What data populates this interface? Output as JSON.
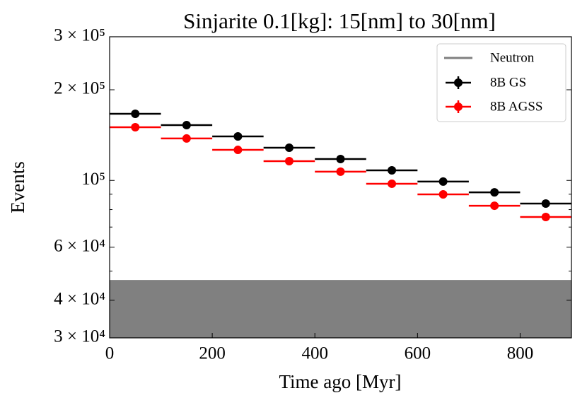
{
  "chart_data": {
    "type": "errorbar",
    "log_y": true,
    "title": "Sinjarite 0.1[kg]: 15[nm] to 30[nm]",
    "xlabel": "Time ago [Myr]",
    "ylabel": "Events",
    "x": [
      50,
      150,
      250,
      350,
      450,
      550,
      650,
      750,
      850
    ],
    "xerr": 50,
    "series": [
      {
        "name": "8B GS",
        "color": "#000000",
        "values": [
          166400,
          152600,
          140000,
          128400,
          117800,
          108000,
          99100,
          91300,
          83800
        ]
      },
      {
        "name": "8B AGSS",
        "color": "#ff0000",
        "values": [
          150200,
          137800,
          126300,
          115900,
          106900,
          97500,
          89900,
          82400,
          75600
        ]
      }
    ],
    "neutron": {
      "name": "Neutron",
      "color": "#808080",
      "value": 46700
    },
    "xlim": [
      0,
      900
    ],
    "xticks": [
      0,
      200,
      400,
      600,
      800
    ],
    "ylim": [
      30000,
      300000
    ],
    "yticks": [
      {
        "value": 300000,
        "label": "3 × 10⁵"
      },
      {
        "value": 200000,
        "label": "2 × 10⁵"
      },
      {
        "value": 100000,
        "label": "10⁵"
      },
      {
        "value": 60000,
        "label": "6 × 10⁴"
      },
      {
        "value": 40000,
        "label": "4 × 10⁴"
      },
      {
        "value": 30000,
        "label": "3 × 10⁴"
      }
    ],
    "yminorticks": [
      50000,
      70000,
      80000,
      90000
    ],
    "legend": "upper right"
  }
}
